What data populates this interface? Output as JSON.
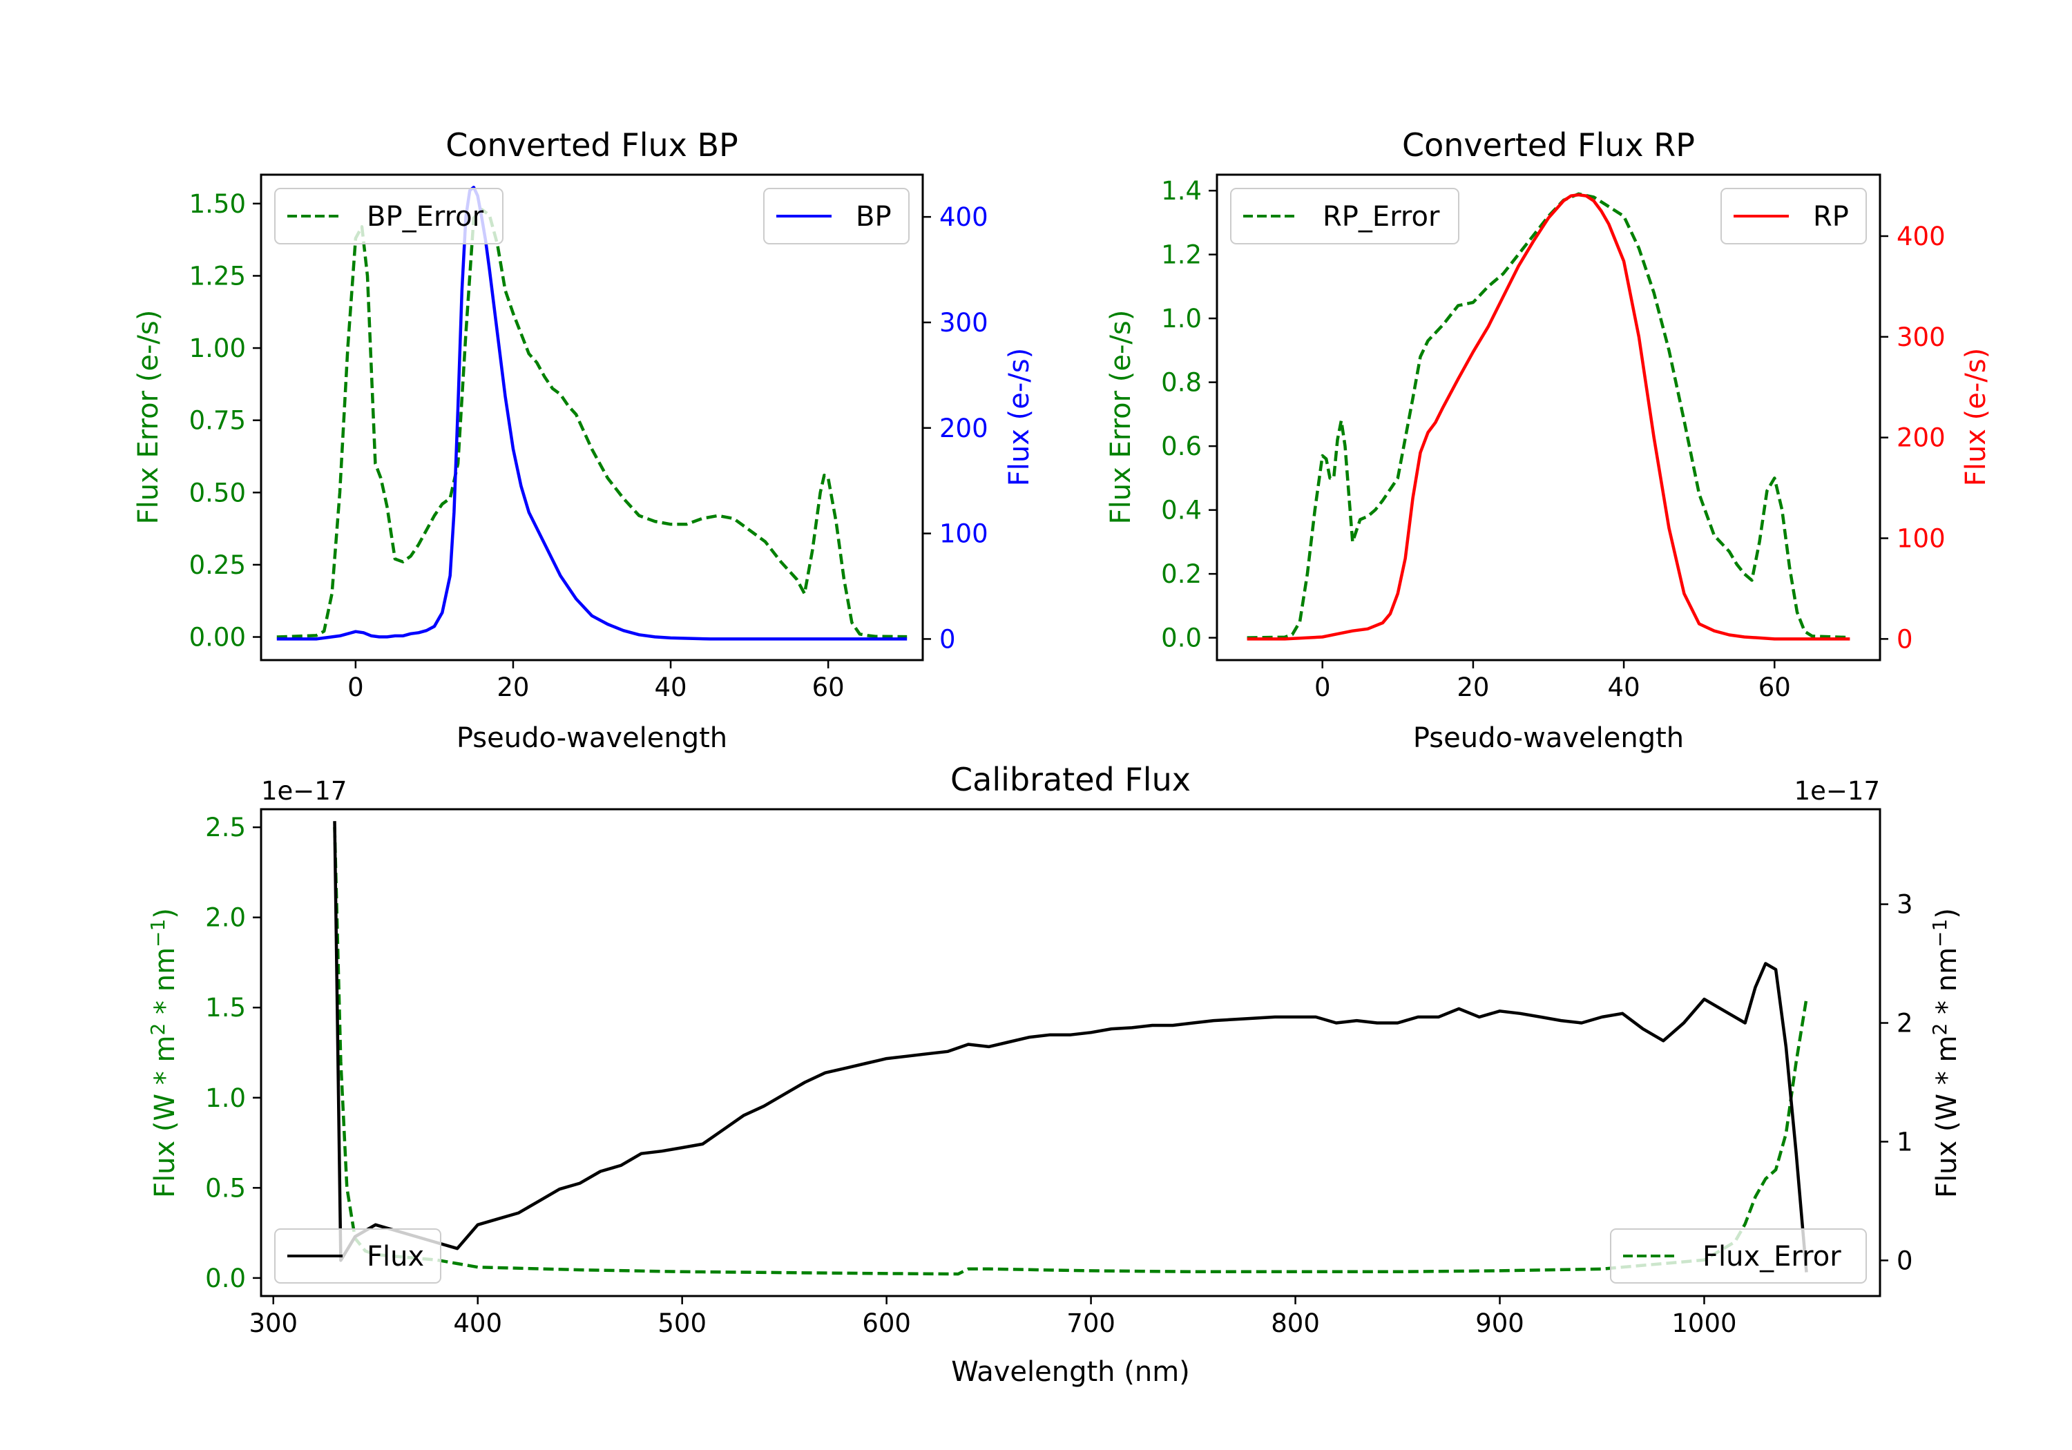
{
  "chart_data": [
    {
      "id": "bp",
      "type": "line",
      "title": "Converted Flux BP",
      "xlabel": "Pseudo-wavelength",
      "y_left_label": "Flux Error (e-/s)",
      "y_right_label": "Flux (e-/s)",
      "xlim": [
        -12,
        72
      ],
      "x_ticks": [
        0,
        20,
        40,
        60
      ],
      "ylim_left": [
        -0.08,
        1.6
      ],
      "y_left_ticks": [
        "0.00",
        "0.25",
        "0.50",
        "0.75",
        "1.00",
        "1.25",
        "1.50"
      ],
      "ylim_right": [
        -20,
        440
      ],
      "y_right_ticks": [
        0,
        100,
        200,
        300,
        400
      ],
      "colors": {
        "error": "#008000",
        "flux": "#0000ff"
      },
      "series": [
        {
          "name": "BP_Error",
          "axis": "left",
          "style": "dashed",
          "color": "#008000",
          "x": [
            -10,
            -5,
            -4,
            -3,
            -2,
            -1,
            0,
            0.8,
            1.5,
            2.5,
            3.2,
            4,
            5,
            6,
            7,
            8,
            10,
            11,
            12,
            13,
            14,
            15,
            16,
            17,
            18,
            19,
            20,
            21,
            22,
            23,
            24,
            25,
            26,
            27,
            28,
            30,
            32,
            34,
            36,
            38,
            40,
            42,
            44,
            46,
            48,
            50,
            52,
            54,
            55,
            56,
            57,
            58,
            59,
            59.5,
            60,
            61,
            62,
            63,
            64,
            65,
            66,
            70
          ],
          "values": [
            0,
            0.005,
            0.02,
            0.15,
            0.5,
            1.0,
            1.38,
            1.42,
            1.25,
            0.6,
            0.55,
            0.45,
            0.27,
            0.26,
            0.28,
            0.32,
            0.42,
            0.46,
            0.48,
            0.6,
            1.05,
            1.45,
            1.48,
            1.46,
            1.36,
            1.2,
            1.12,
            1.05,
            0.98,
            0.95,
            0.9,
            0.86,
            0.84,
            0.8,
            0.77,
            0.65,
            0.55,
            0.48,
            0.42,
            0.4,
            0.39,
            0.39,
            0.41,
            0.42,
            0.41,
            0.37,
            0.33,
            0.26,
            0.23,
            0.2,
            0.15,
            0.3,
            0.5,
            0.56,
            0.55,
            0.4,
            0.2,
            0.05,
            0.01,
            0.005,
            0.002,
            0.001
          ]
        },
        {
          "name": "BP",
          "axis": "right",
          "style": "solid",
          "color": "#0000ff",
          "x": [
            -10,
            -5,
            -2,
            0,
            1,
            2,
            3,
            4,
            5,
            6,
            7,
            8,
            9,
            10,
            11,
            12,
            12.5,
            13,
            13.5,
            14,
            14.5,
            15,
            15.5,
            16,
            16.5,
            17,
            18,
            19,
            20,
            21,
            22,
            24,
            26,
            28,
            30,
            32,
            34,
            36,
            38,
            40,
            45,
            50,
            55,
            60,
            65,
            70
          ],
          "values": [
            0,
            0,
            3,
            7,
            6,
            3,
            2,
            2,
            3,
            3,
            5,
            6,
            8,
            12,
            25,
            60,
            120,
            220,
            330,
            400,
            425,
            428,
            420,
            400,
            378,
            350,
            290,
            230,
            180,
            145,
            120,
            90,
            60,
            38,
            22,
            14,
            8,
            4,
            2,
            1,
            0,
            0,
            0,
            0,
            0,
            0
          ]
        }
      ]
    },
    {
      "id": "rp",
      "type": "line",
      "title": "Converted Flux RP",
      "xlabel": "Pseudo-wavelength",
      "y_left_label": "Flux Error (e-/s)",
      "y_right_label": "Flux (e-/s)",
      "xlim": [
        -14,
        74
      ],
      "x_ticks": [
        0,
        20,
        40,
        60
      ],
      "ylim_left": [
        -0.07,
        1.45
      ],
      "y_left_ticks": [
        "0.0",
        "0.2",
        "0.4",
        "0.6",
        "0.8",
        "1.0",
        "1.2",
        "1.4"
      ],
      "ylim_right": [
        -21,
        461
      ],
      "y_right_ticks": [
        0,
        100,
        200,
        300,
        400
      ],
      "colors": {
        "error": "#008000",
        "flux": "#ff0000"
      },
      "series": [
        {
          "name": "RP_Error",
          "axis": "left",
          "style": "dashed",
          "color": "#008000",
          "x": [
            -10,
            -5,
            -4,
            -3,
            -2,
            -1,
            0,
            0.5,
            1,
            1.5,
            2,
            2.5,
            3,
            3.5,
            4,
            5,
            6,
            7,
            8,
            10,
            12,
            13,
            14,
            16,
            18,
            20,
            22,
            24,
            26,
            28,
            30,
            32,
            34,
            36,
            38,
            40,
            42,
            44,
            46,
            48,
            50,
            52,
            54,
            55,
            56,
            57,
            58,
            59,
            60,
            61,
            62,
            63,
            64,
            65,
            70
          ],
          "values": [
            0,
            0.002,
            0.01,
            0.05,
            0.2,
            0.4,
            0.57,
            0.56,
            0.5,
            0.5,
            0.62,
            0.68,
            0.6,
            0.45,
            0.3,
            0.37,
            0.38,
            0.4,
            0.43,
            0.5,
            0.75,
            0.88,
            0.93,
            0.98,
            1.04,
            1.05,
            1.1,
            1.14,
            1.2,
            1.26,
            1.32,
            1.37,
            1.39,
            1.38,
            1.35,
            1.32,
            1.22,
            1.08,
            0.9,
            0.68,
            0.45,
            0.32,
            0.27,
            0.23,
            0.2,
            0.18,
            0.3,
            0.46,
            0.5,
            0.4,
            0.22,
            0.08,
            0.02,
            0.005,
            0.001
          ]
        },
        {
          "name": "RP",
          "axis": "right",
          "style": "solid",
          "color": "#ff0000",
          "x": [
            -10,
            -5,
            0,
            2,
            4,
            6,
            8,
            9,
            10,
            11,
            12,
            13,
            14,
            15,
            16,
            18,
            20,
            22,
            24,
            26,
            28,
            30,
            32,
            33,
            34,
            35,
            36,
            37,
            38,
            40,
            42,
            44,
            46,
            48,
            50,
            52,
            54,
            56,
            58,
            60,
            62,
            65,
            70
          ],
          "values": [
            0,
            0,
            2,
            5,
            8,
            10,
            16,
            25,
            45,
            80,
            140,
            185,
            205,
            215,
            230,
            258,
            285,
            310,
            340,
            370,
            395,
            418,
            435,
            440,
            441,
            440,
            435,
            425,
            412,
            375,
            300,
            200,
            110,
            45,
            15,
            8,
            4,
            2,
            1,
            0,
            0,
            0,
            0
          ]
        }
      ]
    },
    {
      "id": "calibrated",
      "type": "line",
      "title": "Calibrated Flux",
      "xlabel": "Wavelength (nm)",
      "y_left_label": "Flux (W * m² * nm⁻¹)",
      "y_right_label": "Flux (W * m² * nm⁻¹)",
      "y_left_label_parts": {
        "a": "Flux (W * m",
        "sup1": "2",
        "b": " * nm",
        "sup2": "−1",
        "c": ")"
      },
      "y_right_label_parts": {
        "a": "Flux (W * m",
        "sup1": "2",
        "b": " * nm",
        "sup2": "−1",
        "c": ")"
      },
      "offset_text_left": "1e−17",
      "offset_text_right": "1e−17",
      "xlim": [
        294,
        1086
      ],
      "x_ticks": [
        300,
        400,
        500,
        600,
        700,
        800,
        900,
        1000
      ],
      "ylim_left": [
        -0.1,
        2.6
      ],
      "y_left_ticks": [
        "0.0",
        "0.5",
        "1.0",
        "1.5",
        "2.0",
        "2.5"
      ],
      "ylim_right": [
        -0.3,
        3.8
      ],
      "y_right_ticks": [
        0,
        1,
        2,
        3
      ],
      "colors": {
        "error": "#008000",
        "flux": "#000000"
      },
      "series": [
        {
          "name": "Flux_Error",
          "axis": "left",
          "style": "dashed",
          "color": "#008000",
          "x": [
            330,
            333,
            336,
            340,
            345,
            350,
            360,
            370,
            380,
            390,
            400,
            450,
            500,
            550,
            600,
            635,
            640,
            650,
            700,
            750,
            800,
            850,
            900,
            950,
            1000,
            1015,
            1020,
            1025,
            1030,
            1035,
            1040,
            1045,
            1050
          ],
          "values": [
            2.5,
            1.2,
            0.5,
            0.22,
            0.15,
            0.13,
            0.12,
            0.11,
            0.1,
            0.08,
            0.06,
            0.045,
            0.035,
            0.03,
            0.025,
            0.022,
            0.05,
            0.05,
            0.04,
            0.035,
            0.035,
            0.035,
            0.04,
            0.05,
            0.1,
            0.2,
            0.3,
            0.45,
            0.55,
            0.6,
            0.8,
            1.2,
            1.55
          ]
        },
        {
          "name": "Flux",
          "axis": "right",
          "style": "solid",
          "color": "#000000",
          "x": [
            330,
            333,
            340,
            350,
            360,
            370,
            380,
            390,
            400,
            410,
            420,
            430,
            440,
            450,
            460,
            470,
            480,
            490,
            500,
            510,
            520,
            530,
            540,
            550,
            560,
            570,
            580,
            590,
            600,
            610,
            620,
            630,
            640,
            650,
            660,
            670,
            680,
            690,
            700,
            710,
            720,
            730,
            740,
            750,
            760,
            770,
            780,
            790,
            800,
            810,
            820,
            830,
            840,
            850,
            860,
            870,
            880,
            890,
            900,
            910,
            920,
            930,
            940,
            950,
            960,
            970,
            980,
            990,
            1000,
            1010,
            1020,
            1025,
            1030,
            1035,
            1040,
            1045,
            1050
          ],
          "values": [
            3.7,
            0.0,
            0.2,
            0.3,
            0.25,
            0.2,
            0.15,
            0.1,
            0.3,
            0.35,
            0.4,
            0.5,
            0.6,
            0.65,
            0.75,
            0.8,
            0.9,
            0.92,
            0.95,
            0.98,
            1.1,
            1.22,
            1.3,
            1.4,
            1.5,
            1.58,
            1.62,
            1.66,
            1.7,
            1.72,
            1.74,
            1.76,
            1.82,
            1.8,
            1.84,
            1.88,
            1.9,
            1.9,
            1.92,
            1.95,
            1.96,
            1.98,
            1.98,
            2.0,
            2.02,
            2.03,
            2.04,
            2.05,
            2.05,
            2.05,
            2.0,
            2.02,
            2.0,
            2.0,
            2.05,
            2.05,
            2.12,
            2.05,
            2.1,
            2.08,
            2.05,
            2.02,
            2.0,
            2.05,
            2.08,
            1.95,
            1.85,
            2.0,
            2.2,
            2.1,
            2.0,
            2.3,
            2.5,
            2.45,
            1.8,
            0.9,
            -0.1
          ]
        }
      ]
    }
  ]
}
